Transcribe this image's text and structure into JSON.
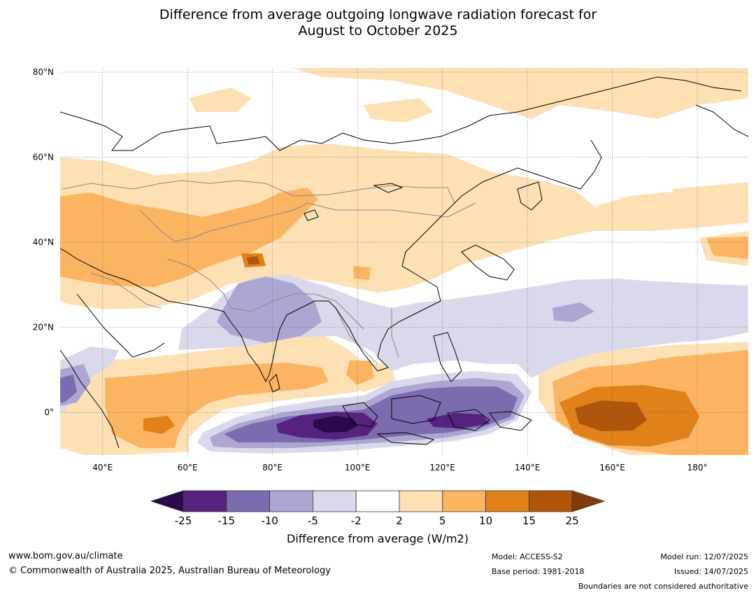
{
  "title": {
    "line1": "Difference from average outgoing longwave radiation forecast for",
    "line2": "August to October 2025"
  },
  "map": {
    "lat_labels": [
      "80°N",
      "60°N",
      "40°N",
      "20°N",
      "0°"
    ],
    "lat_values": [
      80,
      60,
      40,
      20,
      0
    ],
    "lon_labels": [
      "40°E",
      "60°E",
      "80°E",
      "100°E",
      "120°E",
      "140°E",
      "160°E",
      "180°"
    ],
    "lon_values": [
      40,
      60,
      80,
      100,
      120,
      140,
      160,
      180
    ],
    "lon_range": [
      30,
      192
    ],
    "lat_range": [
      -10,
      81
    ]
  },
  "legend": {
    "ticks": [
      "-25",
      "-15",
      "-10",
      "-5",
      "-2",
      "2",
      "5",
      "10",
      "15",
      "25"
    ],
    "colors": [
      "#2a0a4a",
      "#55237f",
      "#7d6baf",
      "#ada6d2",
      "#d9d9eb",
      "#ffffff",
      "#fde0b4",
      "#fbb462",
      "#e0811a",
      "#b0560c",
      "#7f3d0b"
    ],
    "label": "Difference from average (W/m2)"
  },
  "footer": {
    "url": "www.bom.gov.au/climate",
    "copyright": "© Commonwealth of Australia 2025, Australian Bureau of Meteorology",
    "model": "Model: ACCESS-S2",
    "base_period": "Base period: 1981-2018",
    "model_run": "Model run: 12/07/2025",
    "issued": "Issued: 14/07/2025",
    "boundaries": "Boundaries are not considered authoritative"
  }
}
